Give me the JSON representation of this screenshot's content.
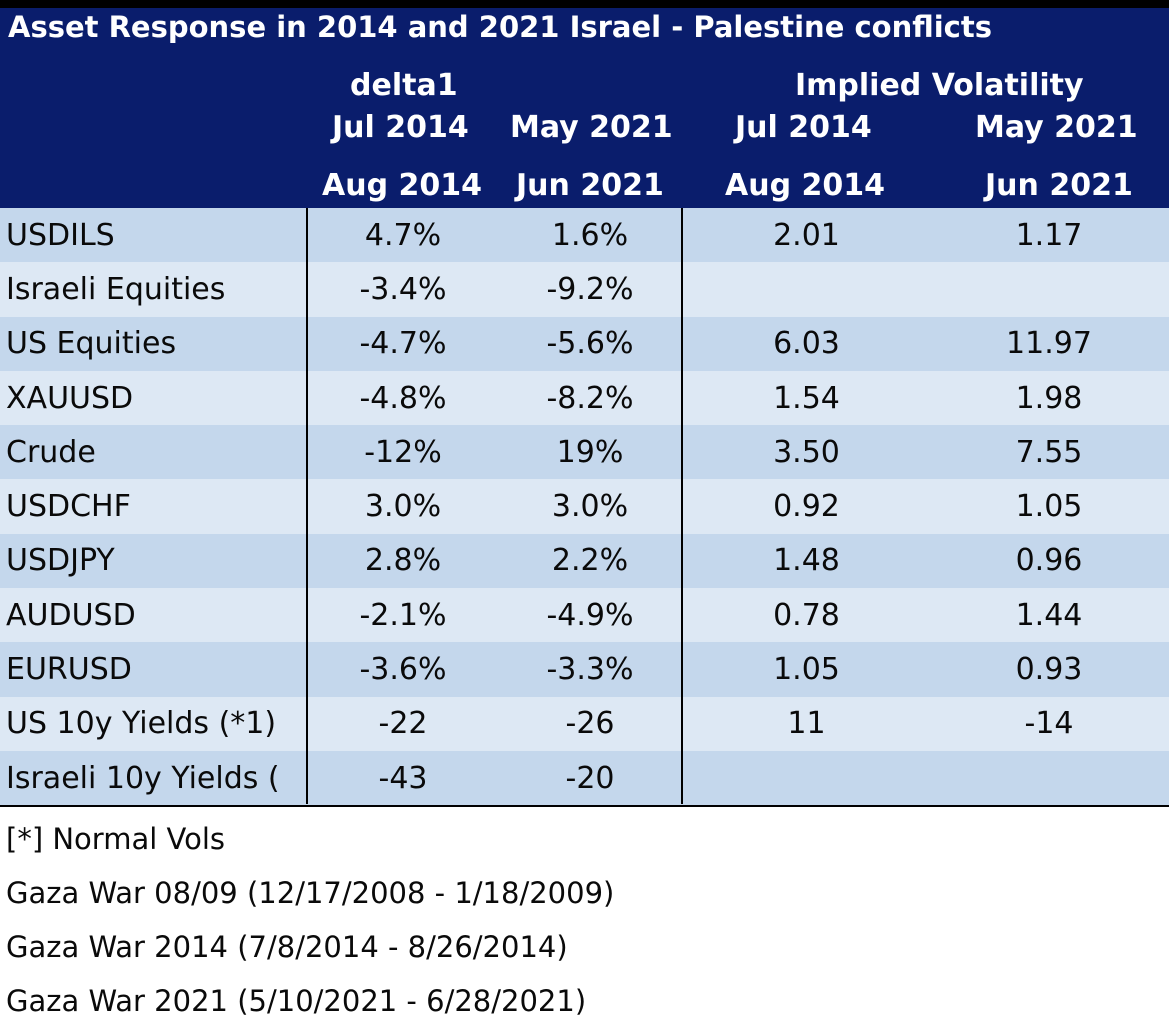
{
  "title": "Asset Response in 2014 and 2021 Israel - Palestine conflicts",
  "groups": {
    "delta1": "delta1",
    "implied_vol": "Implied Volatility"
  },
  "columns": {
    "c1_top": "Jul 2014",
    "c1_bottom": "Aug 2014",
    "c2_top": "May 2021",
    "c2_bottom": "Jun 2021",
    "c3_top": "Jul 2014",
    "c3_bottom": "Aug 2014",
    "c4_top": "May 2021",
    "c4_bottom": "Jun 2021"
  },
  "rows": [
    {
      "label": "USDILS",
      "c1": "4.7%",
      "c2": "1.6%",
      "c3": "2.01",
      "c4": "1.17"
    },
    {
      "label": "Israeli Equities",
      "c1": "-3.4%",
      "c2": "-9.2%",
      "c3": "",
      "c4": ""
    },
    {
      "label": "US Equities",
      "c1": "-4.7%",
      "c2": "-5.6%",
      "c3": "6.03",
      "c4": "11.97"
    },
    {
      "label": "XAUUSD",
      "c1": "-4.8%",
      "c2": "-8.2%",
      "c3": "1.54",
      "c4": "1.98"
    },
    {
      "label": "Crude",
      "c1": "-12%",
      "c2": "19%",
      "c3": "3.50",
      "c4": "7.55"
    },
    {
      "label": "USDCHF",
      "c1": "3.0%",
      "c2": "3.0%",
      "c3": "0.92",
      "c4": "1.05"
    },
    {
      "label": "USDJPY",
      "c1": "2.8%",
      "c2": "2.2%",
      "c3": "1.48",
      "c4": "0.96"
    },
    {
      "label": "AUDUSD",
      "c1": "-2.1%",
      "c2": "-4.9%",
      "c3": "0.78",
      "c4": "1.44"
    },
    {
      "label": "EURUSD",
      "c1": "-3.6%",
      "c2": "-3.3%",
      "c3": "1.05",
      "c4": "0.93"
    },
    {
      "label": "US 10y Yields (*1)",
      "c1": "-22",
      "c2": "-26",
      "c3": "11",
      "c4": "-14"
    },
    {
      "label": "Israeli 10y Yields (",
      "c1": "-43",
      "c2": "-20",
      "c3": "",
      "c4": ""
    }
  ],
  "notes": [
    "[*] Normal Vols",
    "Gaza War 08/09 (12/17/2008 - 1/18/2009)",
    "Gaza War 2014 (7/8/2014 - 8/26/2014)",
    "Gaza War 2021 (5/10/2021 - 6/28/2021)"
  ],
  "colors": {
    "header_bg": "#0a1d6c",
    "row_dark": "#c4d7ec",
    "row_light": "#dde8f4"
  }
}
